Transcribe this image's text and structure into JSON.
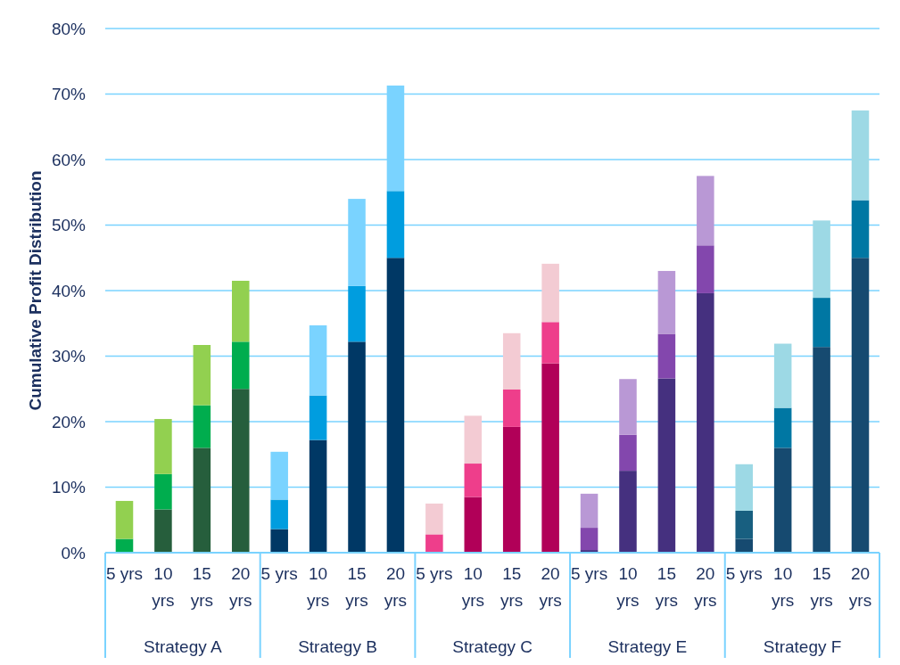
{
  "chart_data": {
    "type": "bar",
    "stacked": true,
    "ylabel": "Cumulative Profit Distribution",
    "categories": [
      "5 yrs",
      "10 yrs",
      "15 yrs",
      "20 yrs",
      "5 yrs",
      "10 yrs",
      "15 yrs",
      "20 yrs",
      "5 yrs",
      "10 yrs",
      "15 yrs",
      "20 yrs",
      "5 yrs",
      "10 yrs",
      "15 yrs",
      "20 yrs",
      "5 yrs",
      "10 yrs",
      "15 yrs",
      "20 yrs"
    ],
    "series": [
      {
        "values": [
          0,
          6.6,
          16.0,
          25.0,
          3.6,
          17.2,
          32.2,
          45.0,
          0,
          8.5,
          19.2,
          28.9,
          0.4,
          12.5,
          26.6,
          39.6,
          2.1,
          16.0,
          31.4,
          45.0
        ],
        "colors": [
          "#265e3c",
          "#265e3c",
          "#265e3c",
          "#265e3c",
          "#003865",
          "#003865",
          "#003865",
          "#003865",
          "#b10058",
          "#b10058",
          "#b10058",
          "#b10058",
          "#45307f",
          "#45307f",
          "#45307f",
          "#45307f",
          "#164a70",
          "#164a70",
          "#164a70",
          "#164a70"
        ]
      },
      {
        "values": [
          2.1,
          5.4,
          6.5,
          7.2,
          4.5,
          6.8,
          8.5,
          10.2,
          2.8,
          5.1,
          5.7,
          6.3,
          3.4,
          5.5,
          6.8,
          7.3,
          4.3,
          6.1,
          7.5,
          8.8
        ],
        "colors": [
          "#00ad4e",
          "#00ad4e",
          "#00ad4e",
          "#00ad4e",
          "#009ddf",
          "#009ddf",
          "#009ddf",
          "#009ddf",
          "#ee3e8b",
          "#ee3e8b",
          "#ee3e8b",
          "#ee3e8b",
          "#8347ad",
          "#8347ad",
          "#8347ad",
          "#8347ad",
          "#185f80",
          "#0077a3",
          "#0077a3",
          "#0077a3"
        ]
      },
      {
        "values": [
          5.8,
          8.4,
          9.2,
          9.3,
          7.3,
          10.7,
          13.3,
          16.1,
          4.7,
          7.3,
          8.6,
          8.9,
          5.2,
          8.5,
          9.6,
          10.6,
          7.1,
          9.8,
          11.8,
          13.7
        ],
        "colors": [
          "#92d050",
          "#92d050",
          "#92d050",
          "#92d050",
          "#7ad3ff",
          "#7ad3ff",
          "#7ad3ff",
          "#7ad3ff",
          "#f3cbd3",
          "#f3cbd3",
          "#f3cbd3",
          "#f3cbd3",
          "#b998d5",
          "#b998d5",
          "#b998d5",
          "#b998d5",
          "#9dd9e5",
          "#9dd9e5",
          "#9dd9e5",
          "#9dd9e5"
        ]
      }
    ],
    "annotations": [
      "Strategy A",
      "Strategy B",
      "Strategy C",
      "Strategy E",
      "Strategy F"
    ],
    "ylim": [
      0,
      80
    ],
    "yticks": [
      {
        "value": 0,
        "label": "0%"
      },
      {
        "value": 10,
        "label": "10%"
      },
      {
        "value": 20,
        "label": "20%"
      },
      {
        "value": 30,
        "label": "30%"
      },
      {
        "value": 40,
        "label": "40%"
      },
      {
        "value": 50,
        "label": "50%"
      },
      {
        "value": 60,
        "label": "60%"
      },
      {
        "value": 70,
        "label": "70%"
      },
      {
        "value": 80,
        "label": "80%"
      }
    ],
    "grid": "y"
  }
}
